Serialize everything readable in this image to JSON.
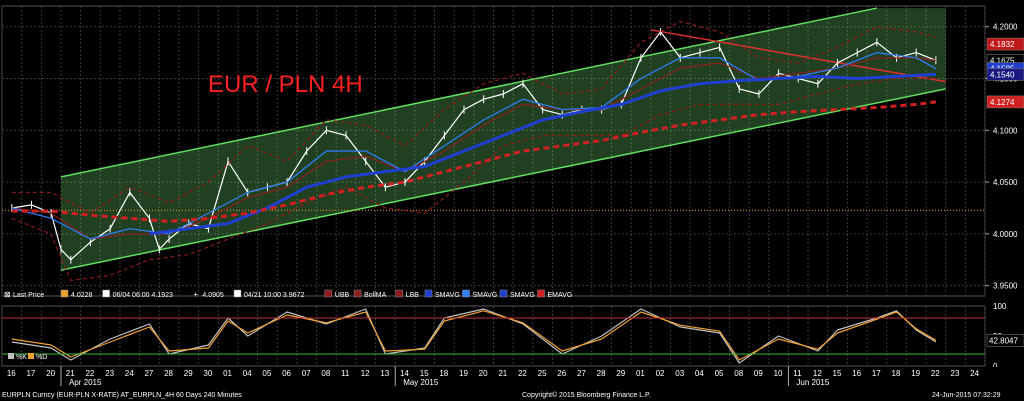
{
  "title": "EUR / PLN 4H",
  "legend": [
    {
      "icon": "cross-icon",
      "label": "Last Price",
      "color": "#ffffff",
      "kind": "text"
    },
    {
      "icon": "swatch",
      "label": "4.0228",
      "color": "#f0a030",
      "kind": "swatch"
    },
    {
      "icon": "swatch",
      "label": "06/04 06:00 4.1923",
      "color": "#ffffff",
      "kind": "swatch"
    },
    {
      "icon": "plus-icon",
      "label": "4.0905",
      "color": "#ffffff",
      "kind": "text"
    },
    {
      "icon": "swatch",
      "label": "04/21 10:00 3.9672",
      "color": "#ffffff",
      "kind": "swatch"
    },
    {
      "icon": "swatch",
      "label": "UBB",
      "color": "#8b1a1a",
      "kind": "swatch"
    },
    {
      "icon": "swatch",
      "label": "BollMA",
      "color": "#8b2020",
      "kind": "swatch"
    },
    {
      "icon": "swatch",
      "label": "LBB",
      "color": "#8b1a1a",
      "kind": "swatch"
    },
    {
      "icon": "swatch",
      "label": "SMAVG",
      "color": "#1f3fd0",
      "kind": "swatch"
    },
    {
      "icon": "swatch",
      "label": "SMAVG",
      "color": "#2f80ff",
      "kind": "swatch"
    },
    {
      "icon": "swatch",
      "label": "SMAVG",
      "color": "#1f3fd0",
      "kind": "swatch"
    },
    {
      "icon": "swatch",
      "label": "EMAVG",
      "color": "#d02020",
      "kind": "swatch"
    }
  ],
  "price_axis": {
    "ticks": [
      "4.2000",
      "4.1500",
      "4.1000",
      "4.0500",
      "4.0000",
      "3.9500"
    ]
  },
  "price_tags": [
    {
      "text": "4.1832",
      "bg": "#c01818",
      "color": "#ffffff",
      "y": 4.1832
    },
    {
      "text": "4.1675",
      "bg": "#000000",
      "color": "#ffffff",
      "y": 4.1675
    },
    {
      "text": "4.1595",
      "bg": "#1f3fd0",
      "color": "#ffffff",
      "y": 4.1595
    },
    {
      "text": "4.1540",
      "bg": "#1a1a80",
      "color": "#ffffff",
      "y": 4.154
    },
    {
      "text": "4.1274",
      "bg": "#d02020",
      "color": "#ffffff",
      "y": 4.1274
    }
  ],
  "osc_axis": {
    "ticks": [
      "100",
      "50",
      "0"
    ]
  },
  "osc_tag": {
    "text": "42.8047",
    "value": 42.8047
  },
  "osc_legend": [
    {
      "label": "%K",
      "color": "#c0c0c0"
    },
    {
      "label": "%D",
      "color": "#f0a030"
    }
  ],
  "x_days": [
    "16",
    "17",
    "20",
    "21",
    "22",
    "23",
    "24",
    "27",
    "28",
    "29",
    "30",
    "01",
    "04",
    "05",
    "06",
    "07",
    "08",
    "11",
    "12",
    "13",
    "14",
    "15",
    "18",
    "19",
    "20",
    "21",
    "22",
    "25",
    "26",
    "27",
    "28",
    "29",
    "01",
    "02",
    "03",
    "04",
    "05",
    "08",
    "09",
    "10",
    "11",
    "12",
    "15",
    "16",
    "17",
    "18",
    "19",
    "22",
    "23",
    "24"
  ],
  "months": [
    {
      "label": "Apr 2015",
      "day_index": 3
    },
    {
      "label": "May 2015",
      "day_index": 20
    },
    {
      "label": "Jun 2015",
      "day_index": 40
    }
  ],
  "footer": {
    "left": "EURPLN Curncy (EUR-PLN X-RATE) AT_EURPLN_4H 60 Days 240 Minutes",
    "center": "Copyright© 2015 Bloomberg Finance L.P.",
    "right": "24-Jun-2015 07:32:29"
  },
  "chart_data": {
    "type": "line",
    "title": "EUR / PLN 4H",
    "ylim": [
      3.94,
      4.22
    ],
    "osc_ylim": [
      0,
      100
    ],
    "x_start_day_index": 0,
    "x_end_day_index": 49,
    "reference_lines": [
      {
        "name": "4.0228",
        "y": 4.0228,
        "color": "#f0a030"
      }
    ],
    "channel": {
      "upper": [
        [
          2.5,
          4.055
        ],
        [
          44,
          4.218
        ]
      ],
      "lower": [
        [
          2.5,
          3.965
        ],
        [
          47.5,
          4.14
        ]
      ]
    },
    "trendline": [
      [
        32.5,
        4.197
      ],
      [
        47.5,
        4.147
      ]
    ],
    "series": [
      {
        "name": "Last Price",
        "color": "#ffffff",
        "points": [
          [
            0,
            4.025
          ],
          [
            1,
            4.028
          ],
          [
            2,
            4.02
          ],
          [
            2.5,
            3.985
          ],
          [
            3,
            3.975
          ],
          [
            4,
            3.992
          ],
          [
            5,
            4.005
          ],
          [
            6,
            4.04
          ],
          [
            7,
            4.015
          ],
          [
            7.5,
            3.985
          ],
          [
            8,
            3.995
          ],
          [
            9,
            4.01
          ],
          [
            10,
            4.005
          ],
          [
            11,
            4.07
          ],
          [
            12,
            4.04
          ],
          [
            13,
            4.045
          ],
          [
            14,
            4.05
          ],
          [
            15,
            4.08
          ],
          [
            16,
            4.1
          ],
          [
            17,
            4.095
          ],
          [
            18,
            4.07
          ],
          [
            19,
            4.045
          ],
          [
            20,
            4.05
          ],
          [
            21,
            4.07
          ],
          [
            22,
            4.095
          ],
          [
            23,
            4.12
          ],
          [
            24,
            4.13
          ],
          [
            25,
            4.135
          ],
          [
            26,
            4.145
          ],
          [
            27,
            4.12
          ],
          [
            28,
            4.115
          ],
          [
            29,
            4.12
          ],
          [
            30,
            4.12
          ],
          [
            31,
            4.125
          ],
          [
            32,
            4.17
          ],
          [
            33,
            4.195
          ],
          [
            34,
            4.17
          ],
          [
            35,
            4.175
          ],
          [
            36,
            4.18
          ],
          [
            37,
            4.14
          ],
          [
            38,
            4.135
          ],
          [
            39,
            4.155
          ],
          [
            40,
            4.15
          ],
          [
            41,
            4.145
          ],
          [
            42,
            4.165
          ],
          [
            43,
            4.175
          ],
          [
            44,
            4.185
          ],
          [
            45,
            4.17
          ],
          [
            46,
            4.175
          ],
          [
            47,
            4.1675
          ]
        ]
      },
      {
        "name": "UBB",
        "color": "#8b1a1a",
        "dash": "4,3",
        "points": [
          [
            0,
            4.04
          ],
          [
            2,
            4.04
          ],
          [
            4,
            4.02
          ],
          [
            6,
            4.045
          ],
          [
            8,
            4.03
          ],
          [
            10,
            4.05
          ],
          [
            12,
            4.085
          ],
          [
            14,
            4.07
          ],
          [
            16,
            4.11
          ],
          [
            18,
            4.105
          ],
          [
            20,
            4.085
          ],
          [
            22,
            4.12
          ],
          [
            24,
            4.145
          ],
          [
            26,
            4.155
          ],
          [
            28,
            4.135
          ],
          [
            30,
            4.14
          ],
          [
            32,
            4.185
          ],
          [
            34,
            4.205
          ],
          [
            36,
            4.195
          ],
          [
            38,
            4.17
          ],
          [
            40,
            4.165
          ],
          [
            42,
            4.18
          ],
          [
            44,
            4.2
          ],
          [
            46,
            4.195
          ],
          [
            47,
            4.19
          ]
        ]
      },
      {
        "name": "LBB",
        "color": "#8b1a1a",
        "dash": "4,3",
        "points": [
          [
            0,
            4.015
          ],
          [
            2,
            4.0
          ],
          [
            3,
            3.955
          ],
          [
            5,
            3.96
          ],
          [
            7,
            3.975
          ],
          [
            9,
            3.98
          ],
          [
            11,
            3.995
          ],
          [
            13,
            4.01
          ],
          [
            15,
            4.03
          ],
          [
            17,
            4.045
          ],
          [
            19,
            4.025
          ],
          [
            21,
            4.02
          ],
          [
            23,
            4.05
          ],
          [
            25,
            4.085
          ],
          [
            27,
            4.095
          ],
          [
            29,
            4.095
          ],
          [
            31,
            4.095
          ],
          [
            33,
            4.115
          ],
          [
            35,
            4.125
          ],
          [
            37,
            4.125
          ],
          [
            39,
            4.125
          ],
          [
            41,
            4.135
          ],
          [
            43,
            4.145
          ],
          [
            45,
            4.15
          ],
          [
            47,
            4.15
          ]
        ]
      },
      {
        "name": "BollMA",
        "color": "#8b2020",
        "points": [
          [
            0,
            4.025
          ],
          [
            2,
            4.02
          ],
          [
            4,
            3.995
          ],
          [
            6,
            4.0
          ],
          [
            8,
            4.0
          ],
          [
            10,
            4.015
          ],
          [
            12,
            4.035
          ],
          [
            14,
            4.045
          ],
          [
            16,
            4.07
          ],
          [
            18,
            4.075
          ],
          [
            20,
            4.06
          ],
          [
            22,
            4.08
          ],
          [
            24,
            4.105
          ],
          [
            26,
            4.125
          ],
          [
            28,
            4.12
          ],
          [
            30,
            4.12
          ],
          [
            32,
            4.14
          ],
          [
            34,
            4.16
          ],
          [
            36,
            4.165
          ],
          [
            38,
            4.15
          ],
          [
            40,
            4.155
          ],
          [
            42,
            4.16
          ],
          [
            44,
            4.17
          ],
          [
            46,
            4.17
          ],
          [
            47,
            4.1675
          ]
        ]
      },
      {
        "name": "SMAVG",
        "color": "#2f80ff",
        "points": [
          [
            0,
            4.025
          ],
          [
            2,
            4.015
          ],
          [
            4,
            3.995
          ],
          [
            6,
            4.005
          ],
          [
            8,
            4.0
          ],
          [
            10,
            4.02
          ],
          [
            12,
            4.04
          ],
          [
            14,
            4.05
          ],
          [
            16,
            4.08
          ],
          [
            18,
            4.08
          ],
          [
            20,
            4.06
          ],
          [
            22,
            4.085
          ],
          [
            24,
            4.11
          ],
          [
            26,
            4.13
          ],
          [
            28,
            4.12
          ],
          [
            30,
            4.122
          ],
          [
            32,
            4.15
          ],
          [
            34,
            4.17
          ],
          [
            36,
            4.17
          ],
          [
            38,
            4.148
          ],
          [
            40,
            4.152
          ],
          [
            42,
            4.16
          ],
          [
            44,
            4.175
          ],
          [
            46,
            4.17
          ],
          [
            47,
            4.1595
          ]
        ]
      },
      {
        "name": "SMAVG",
        "color": "#1f3fd0",
        "width": 3,
        "points": [
          [
            7,
            4.0
          ],
          [
            9,
            4.005
          ],
          [
            11,
            4.01
          ],
          [
            13,
            4.025
          ],
          [
            15,
            4.045
          ],
          [
            17,
            4.055
          ],
          [
            19,
            4.06
          ],
          [
            21,
            4.065
          ],
          [
            23,
            4.08
          ],
          [
            25,
            4.095
          ],
          [
            27,
            4.11
          ],
          [
            29,
            4.118
          ],
          [
            31,
            4.125
          ],
          [
            33,
            4.138
          ],
          [
            35,
            4.145
          ],
          [
            37,
            4.148
          ],
          [
            39,
            4.15
          ],
          [
            41,
            4.152
          ],
          [
            43,
            4.15
          ],
          [
            45,
            4.152
          ],
          [
            47,
            4.154
          ]
        ]
      },
      {
        "name": "EMAVG",
        "color": "#d02020",
        "dash": "6,4",
        "width": 3,
        "points": [
          [
            0,
            4.022
          ],
          [
            2,
            4.022
          ],
          [
            4,
            4.018
          ],
          [
            6,
            4.015
          ],
          [
            8,
            4.012
          ],
          [
            10,
            4.015
          ],
          [
            12,
            4.02
          ],
          [
            14,
            4.028
          ],
          [
            16,
            4.038
          ],
          [
            18,
            4.045
          ],
          [
            20,
            4.05
          ],
          [
            22,
            4.06
          ],
          [
            24,
            4.07
          ],
          [
            26,
            4.08
          ],
          [
            28,
            4.085
          ],
          [
            30,
            4.09
          ],
          [
            32,
            4.098
          ],
          [
            34,
            4.105
          ],
          [
            36,
            4.11
          ],
          [
            38,
            4.115
          ],
          [
            40,
            4.118
          ],
          [
            42,
            4.12
          ],
          [
            44,
            4.122
          ],
          [
            46,
            4.125
          ],
          [
            47,
            4.1274
          ]
        ]
      },
      {
        "name": "%K",
        "color": "#c0c0c0",
        "panel": "osc",
        "points": [
          [
            0,
            40
          ],
          [
            2,
            30
          ],
          [
            3,
            10
          ],
          [
            5,
            45
          ],
          [
            7,
            70
          ],
          [
            8,
            20
          ],
          [
            10,
            35
          ],
          [
            11,
            80
          ],
          [
            12,
            50
          ],
          [
            14,
            90
          ],
          [
            16,
            70
          ],
          [
            18,
            95
          ],
          [
            19,
            20
          ],
          [
            21,
            30
          ],
          [
            22,
            80
          ],
          [
            24,
            95
          ],
          [
            26,
            70
          ],
          [
            28,
            20
          ],
          [
            30,
            50
          ],
          [
            32,
            95
          ],
          [
            34,
            65
          ],
          [
            36,
            55
          ],
          [
            37,
            5
          ],
          [
            39,
            50
          ],
          [
            41,
            25
          ],
          [
            42,
            60
          ],
          [
            44,
            80
          ],
          [
            45,
            92
          ],
          [
            46,
            60
          ],
          [
            47,
            40
          ]
        ]
      },
      {
        "name": "%D",
        "color": "#f0a030",
        "panel": "osc",
        "points": [
          [
            0,
            45
          ],
          [
            2,
            35
          ],
          [
            3,
            15
          ],
          [
            5,
            40
          ],
          [
            7,
            65
          ],
          [
            8,
            25
          ],
          [
            10,
            30
          ],
          [
            11,
            75
          ],
          [
            12,
            55
          ],
          [
            14,
            85
          ],
          [
            16,
            72
          ],
          [
            18,
            90
          ],
          [
            19,
            25
          ],
          [
            21,
            28
          ],
          [
            22,
            75
          ],
          [
            24,
            92
          ],
          [
            26,
            72
          ],
          [
            28,
            25
          ],
          [
            30,
            45
          ],
          [
            32,
            90
          ],
          [
            34,
            68
          ],
          [
            36,
            58
          ],
          [
            37,
            10
          ],
          [
            39,
            45
          ],
          [
            41,
            28
          ],
          [
            42,
            55
          ],
          [
            44,
            78
          ],
          [
            45,
            90
          ],
          [
            46,
            62
          ],
          [
            47,
            42.8047
          ]
        ]
      }
    ]
  }
}
